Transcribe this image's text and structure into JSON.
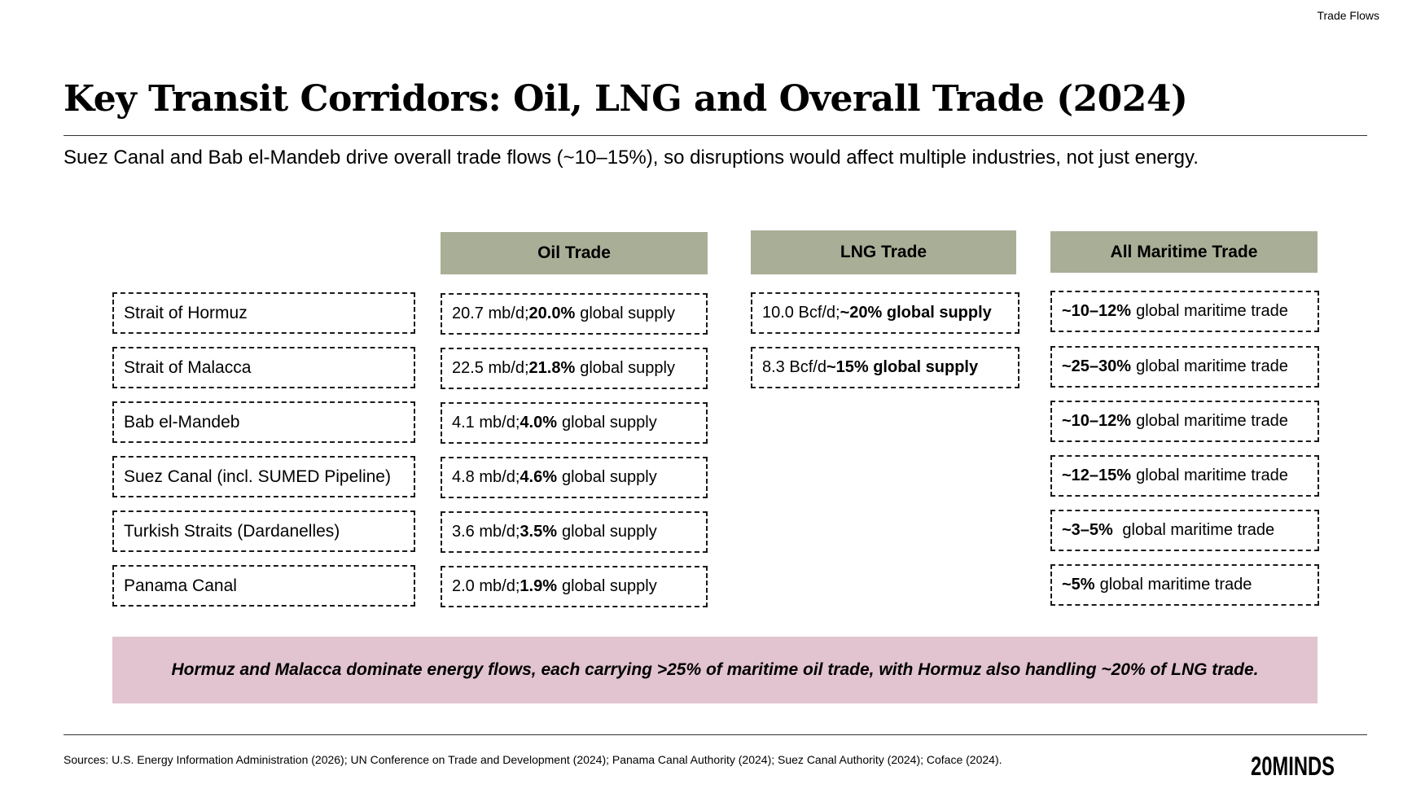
{
  "section_tag": "Trade Flows",
  "title": "Key Transit Corridors: Oil, LNG and Overall Trade (2024)",
  "subtitle": "Suez Canal and Bab el-Mandeb drive overall trade flows (~10–15%), so disruptions would affect multiple industries, not just energy.",
  "columns": {
    "oil": "Oil Trade",
    "lng": "LNG Trade",
    "maritime": "All Maritime Trade"
  },
  "corridors": [
    "Strait of Hormuz",
    "Strait of Malacca",
    "Bab el-Mandeb",
    "Suez Canal (incl. SUMED Pipeline)",
    "Turkish Straits (Dardanelles)",
    "Panama Canal"
  ],
  "oil": [
    {
      "pre": "20.7 mb/d; ",
      "bold": "20.0%",
      "post": "global supply"
    },
    {
      "pre": "22.5 mb/d; ",
      "bold": "21.8%",
      "post": "global supply"
    },
    {
      "pre": "4.1 mb/d; ",
      "bold": "4.0%",
      "post": "global supply"
    },
    {
      "pre": "4.8 mb/d; ",
      "bold": "4.6%",
      "post": "global supply"
    },
    {
      "pre": "3.6 mb/d; ",
      "bold": "3.5%",
      "post": "global supply"
    },
    {
      "pre": "2.0 mb/d; ",
      "bold": "1.9%",
      "post": "global supply"
    }
  ],
  "lng": [
    {
      "pre": "10.0 Bcf/d; ",
      "bold": "~20% global supply"
    },
    {
      "pre": "8.3 Bcf/d ",
      "bold": "~15% global supply"
    }
  ],
  "maritime": [
    {
      "bold": "~10–12%",
      "post": "global maritime trade"
    },
    {
      "bold": "~25–30%",
      "post": "global maritime trade"
    },
    {
      "bold": "~10–12%",
      "post": "global maritime trade"
    },
    {
      "bold": "~12–15%",
      "post": "global maritime trade"
    },
    {
      "bold": "~3–5%",
      "post": " global maritime trade"
    },
    {
      "bold": "~5%",
      "post": "global maritime trade"
    }
  ],
  "callout": "Hormuz and Malacca dominate energy flows, each carrying >25% of maritime oil trade, with Hormuz also handling ~20% of LNG trade.",
  "sources": "Sources: U.S. Energy Information Administration (2026); UN Conference on Trade and Development (2024); Panama Canal Authority (2024); Suez Canal Authority (2024); Coface (2024).",
  "logo_text": "20MINDS"
}
